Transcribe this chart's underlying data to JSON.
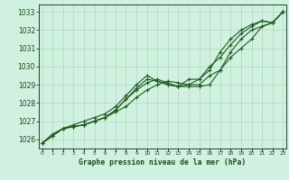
{
  "title": "Graphe pression niveau de la mer (hPa)",
  "xlabel_ticks": [
    0,
    1,
    2,
    3,
    4,
    5,
    6,
    7,
    8,
    9,
    10,
    11,
    12,
    13,
    14,
    15,
    16,
    17,
    18,
    19,
    20,
    21,
    22,
    23
  ],
  "ylim": [
    1025.5,
    1033.4
  ],
  "xlim": [
    -0.3,
    23.3
  ],
  "yticks": [
    1026,
    1027,
    1028,
    1029,
    1030,
    1031,
    1032,
    1033
  ],
  "background_color": "#d0f0e0",
  "grid_color": "#b0d8c0",
  "line_color": "#1e5c1e",
  "text_color": "#1a4a1a",
  "series1": [
    1025.8,
    1026.2,
    1026.6,
    1026.7,
    1026.8,
    1027.0,
    1027.2,
    1027.5,
    1027.8,
    1028.3,
    1028.7,
    1029.0,
    1029.2,
    1029.1,
    1029.0,
    1029.0,
    1029.5,
    1029.8,
    1030.5,
    1031.0,
    1031.5,
    1032.2,
    1032.4,
    1033.0
  ],
  "series2": [
    1025.8,
    1026.2,
    1026.6,
    1026.7,
    1026.8,
    1027.0,
    1027.2,
    1027.6,
    1028.2,
    1028.7,
    1029.1,
    1029.3,
    1029.1,
    1028.9,
    1028.9,
    1028.9,
    1029.0,
    1029.8,
    1030.8,
    1031.5,
    1032.0,
    1032.2,
    1032.4,
    1033.0
  ],
  "series3": [
    1025.8,
    1026.2,
    1026.6,
    1026.7,
    1026.8,
    1027.0,
    1027.2,
    1027.6,
    1028.2,
    1028.8,
    1029.3,
    1029.2,
    1029.0,
    1028.9,
    1029.3,
    1029.3,
    1030.0,
    1030.5,
    1031.2,
    1031.8,
    1032.2,
    1032.5,
    1032.4,
    1033.0
  ],
  "series4": [
    1025.8,
    1026.3,
    1026.6,
    1026.8,
    1027.0,
    1027.2,
    1027.4,
    1027.8,
    1028.4,
    1029.0,
    1029.5,
    1029.2,
    1029.0,
    1028.9,
    1029.0,
    1029.3,
    1029.8,
    1030.8,
    1031.5,
    1032.0,
    1032.3,
    1032.5,
    1032.4,
    1033.0
  ]
}
